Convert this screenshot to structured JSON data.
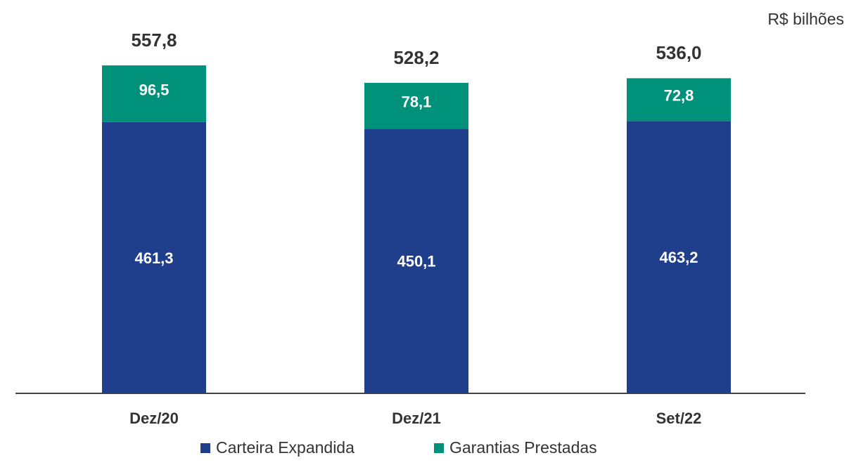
{
  "chart_data": {
    "type": "stacked_bar",
    "unit_label": "R$ bilhões",
    "categories": [
      "Dez/20",
      "Dez/21",
      "Set/22"
    ],
    "series": [
      {
        "name": "Carteira Expandida",
        "color": "#1f3f8c",
        "values": [
          461.3,
          450.1,
          463.2
        ],
        "value_labels": [
          "461,3",
          "450,1",
          "463,2"
        ]
      },
      {
        "name": "Garantias Prestadas",
        "color": "#00917a",
        "values": [
          96.5,
          78.1,
          72.8
        ],
        "value_labels": [
          "96,5",
          "78,1",
          "72,8"
        ]
      }
    ],
    "totals": [
      557.8,
      528.2,
      536.0
    ],
    "total_labels": [
      "557,8",
      "528,2",
      "536,0"
    ]
  }
}
